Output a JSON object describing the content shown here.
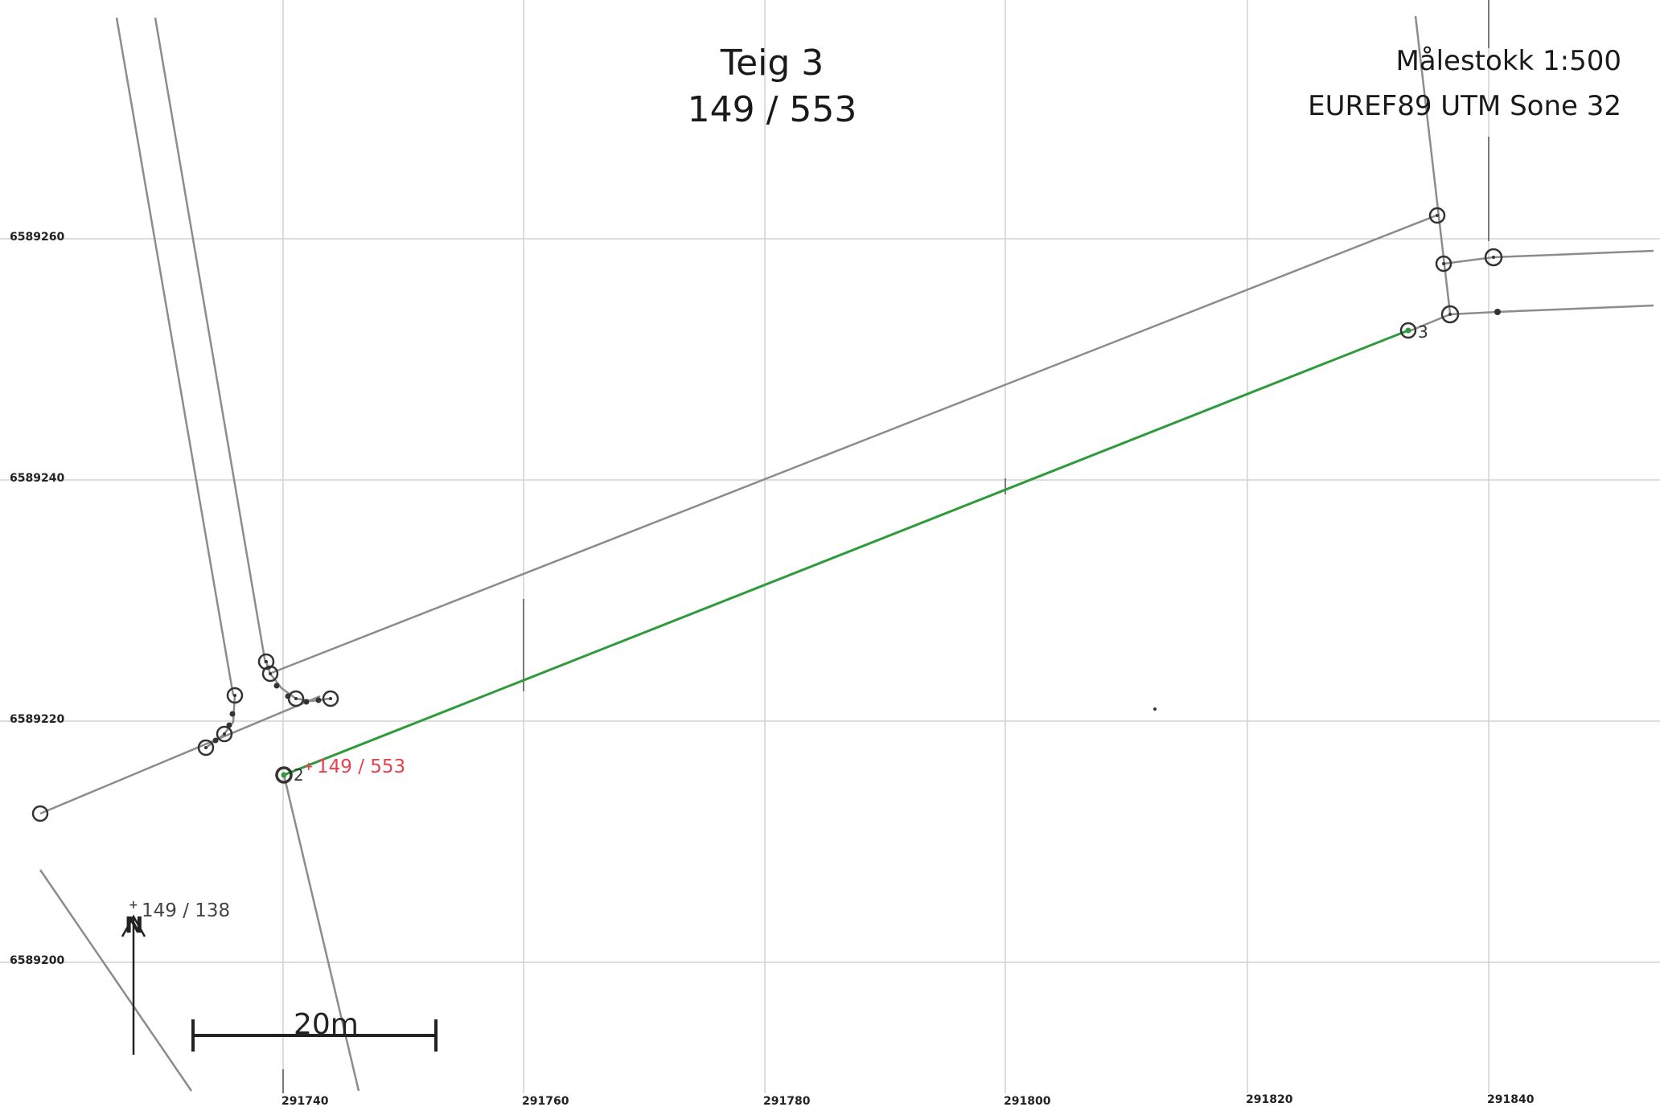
{
  "title": {
    "line1": "Teig 3",
    "line2": "149 / 553"
  },
  "map_info": {
    "scale": "Målestokk 1:500",
    "crs": "EUREF89 UTM Sone 32"
  },
  "grid": {
    "y_labels": [
      "6589260",
      "6589240",
      "6589220",
      "6589200"
    ],
    "x_labels": [
      "291740",
      "291760",
      "291780",
      "291800",
      "291820",
      "291840"
    ]
  },
  "parcel_labels": {
    "main": "149 / 553",
    "neighbor": "149 / 138"
  },
  "point_labels": {
    "p2": "2",
    "p3": "3"
  },
  "north_arrow": {
    "label": "N"
  },
  "scale_bar": {
    "label": "20m"
  },
  "colors": {
    "boundary": "#2e9a3c",
    "lines": "#8c8c8c",
    "parcel_label": "#e8414f",
    "grid": "#cfcfcf"
  }
}
